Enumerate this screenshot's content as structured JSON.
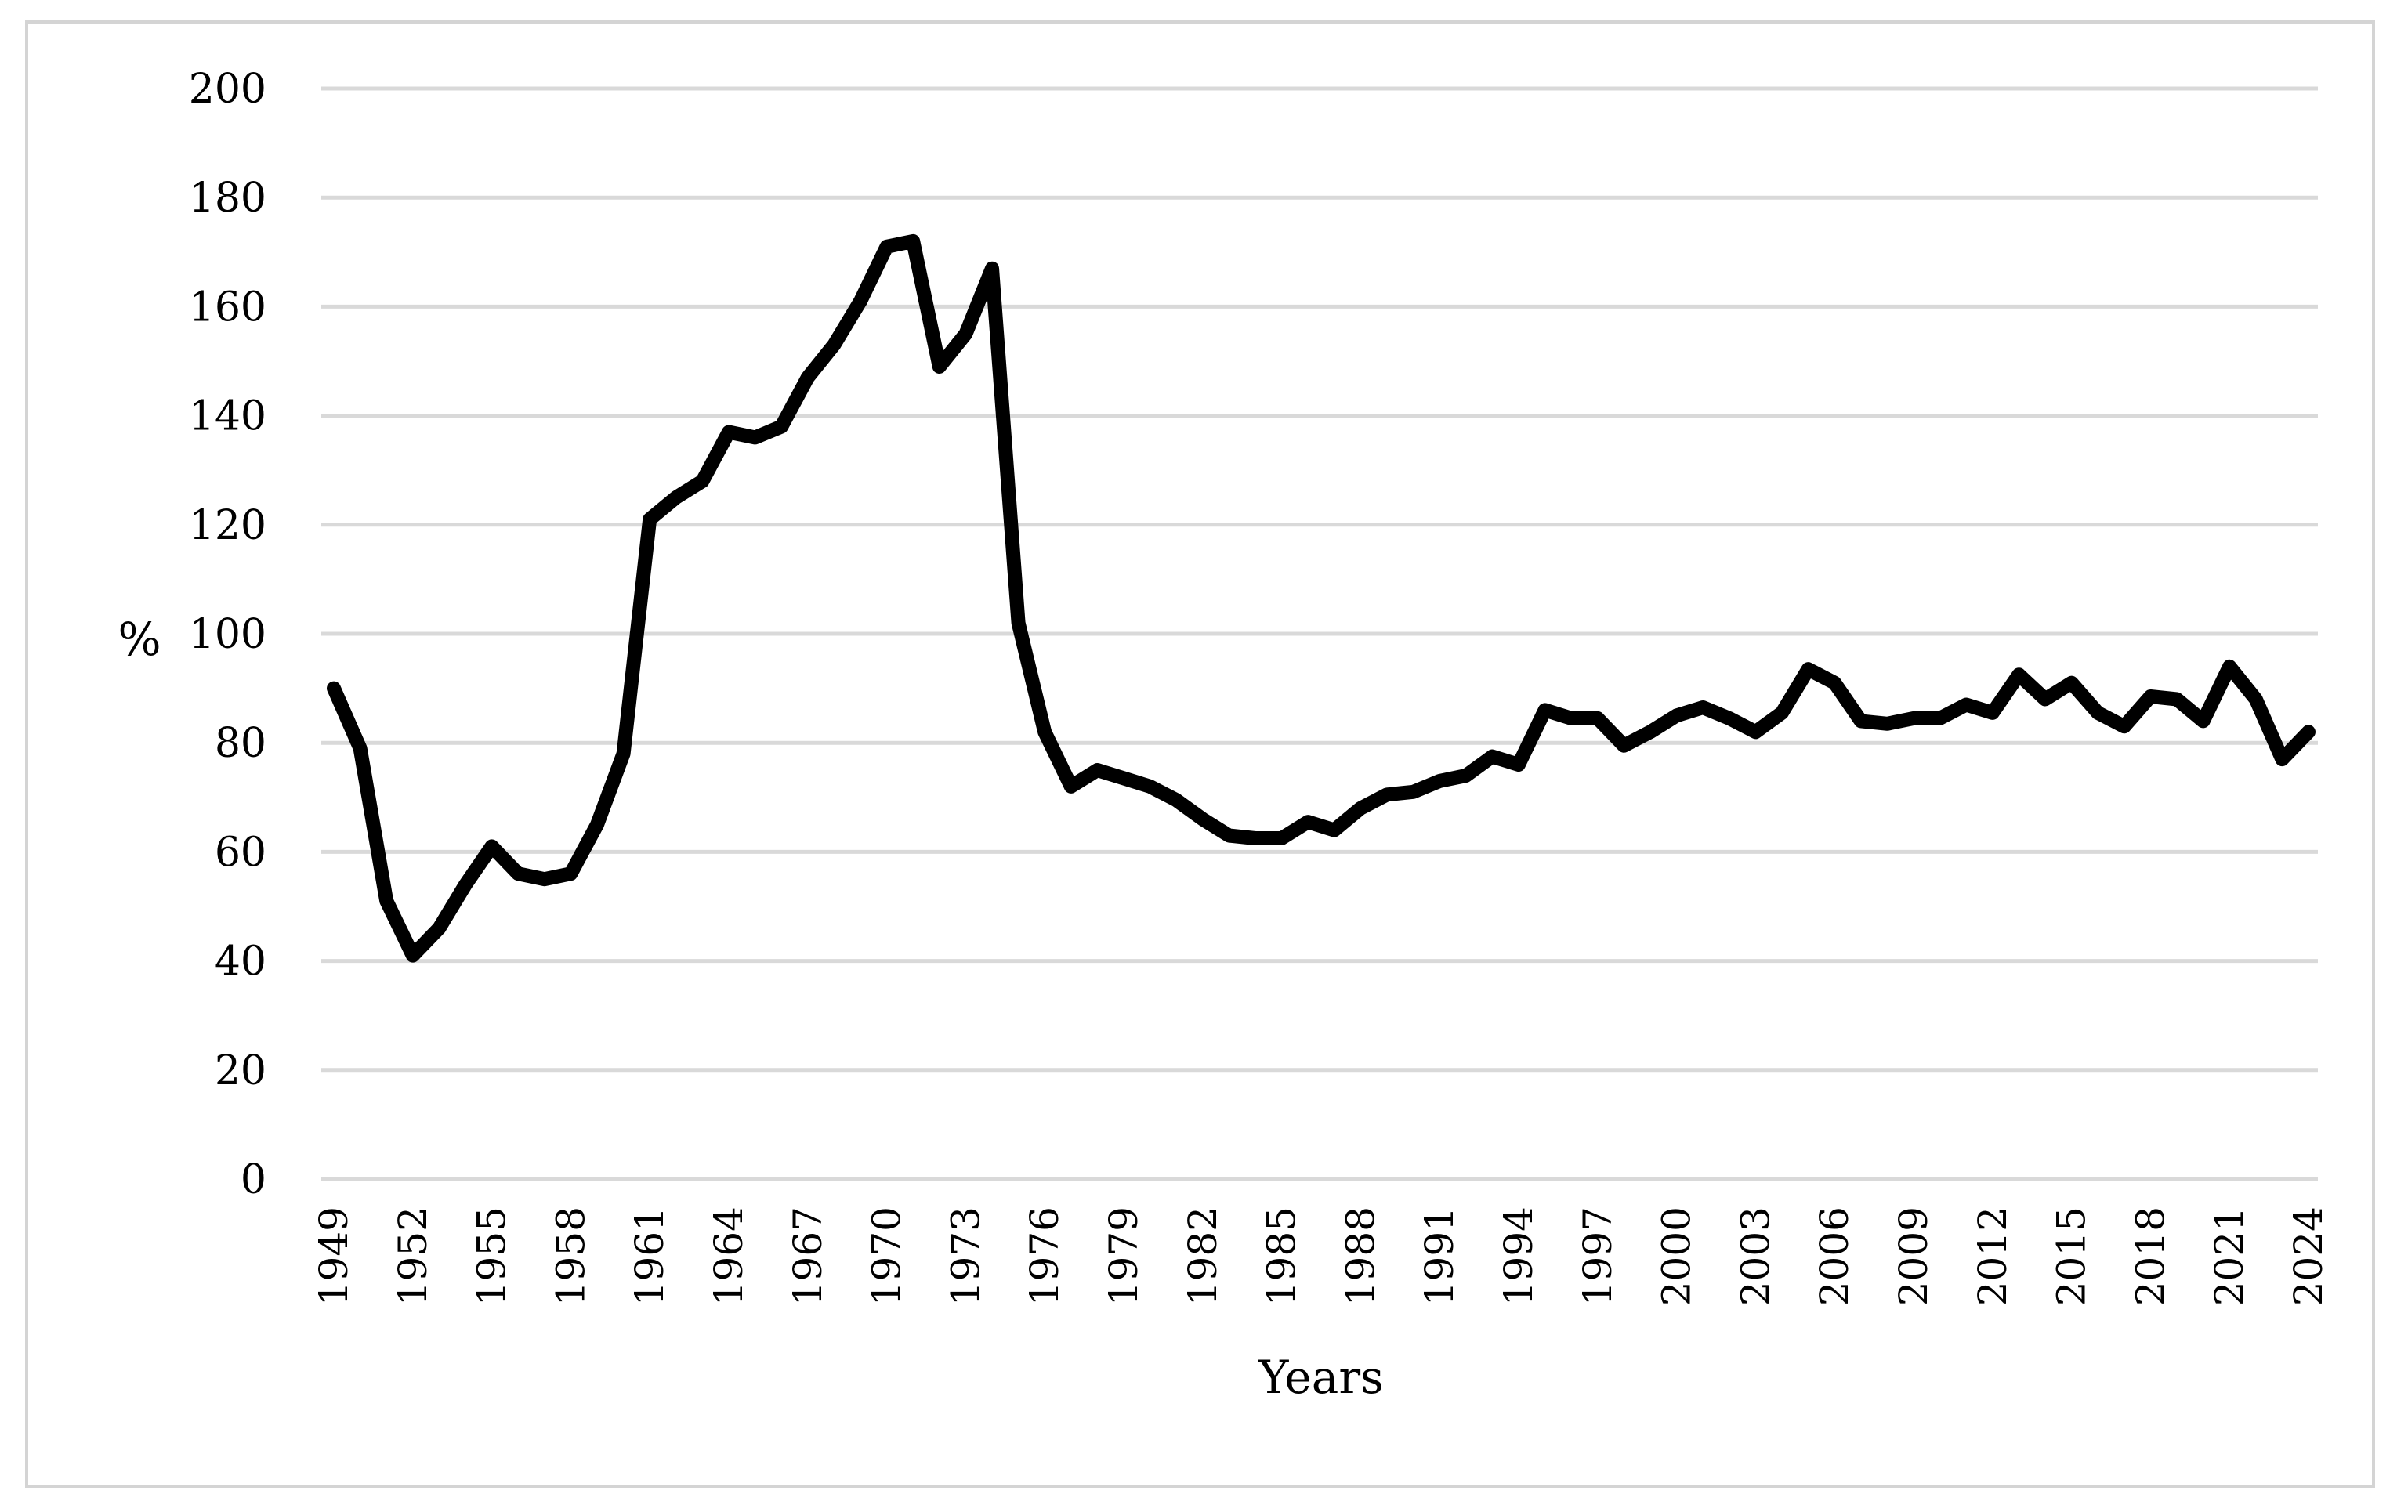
{
  "chart_data": {
    "type": "line",
    "title": "",
    "xlabel": "Years",
    "ylabel": "%",
    "ylim": [
      0,
      200
    ],
    "yticks": [
      0,
      20,
      40,
      60,
      80,
      100,
      120,
      140,
      160,
      180,
      200
    ],
    "xtick_labels": [
      "1949",
      "1952",
      "1955",
      "1958",
      "1961",
      "1964",
      "1967",
      "1970",
      "1973",
      "1976",
      "1979",
      "1982",
      "1985",
      "1988",
      "1991",
      "1994",
      "1997",
      "2000",
      "2003",
      "2006",
      "2009",
      "2012",
      "2015",
      "2018",
      "2021",
      "2024"
    ],
    "grid": "horizontal",
    "legend": "none",
    "line_color": "#000000",
    "grid_color": "#d9d9d9",
    "x": [
      1949,
      1950,
      1951,
      1952,
      1953,
      1954,
      1955,
      1956,
      1957,
      1958,
      1959,
      1960,
      1961,
      1962,
      1963,
      1964,
      1965,
      1966,
      1967,
      1968,
      1969,
      1970,
      1971,
      1972,
      1973,
      1974,
      1975,
      1976,
      1977,
      1978,
      1979,
      1980,
      1981,
      1982,
      1983,
      1984,
      1985,
      1986,
      1987,
      1988,
      1989,
      1990,
      1991,
      1992,
      1993,
      1994,
      1995,
      1996,
      1997,
      1998,
      1999,
      2000,
      2001,
      2002,
      2003,
      2004,
      2005,
      2006,
      2007,
      2008,
      2009,
      2010,
      2011,
      2012,
      2013,
      2014,
      2015,
      2016,
      2017,
      2018,
      2019,
      2020,
      2021,
      2022,
      2023,
      2024
    ],
    "series": [
      {
        "values": [
          90,
          79,
          51,
          41,
          46,
          54,
          61,
          56,
          55,
          56,
          65,
          78,
          121,
          125,
          128,
          137,
          136,
          138,
          147,
          153,
          161,
          171,
          172,
          149,
          155,
          167,
          102,
          82,
          72,
          75,
          73.5,
          72,
          69.5,
          66,
          63,
          62.5,
          62.5,
          65.5,
          64,
          68,
          70.5,
          71,
          73,
          74,
          77.5,
          76,
          86,
          84.5,
          84.5,
          79.5,
          82,
          85,
          86.5,
          84.5,
          82,
          85.5,
          93.5,
          91,
          84,
          83.5,
          84.5,
          84.5,
          87,
          85.5,
          92.5,
          88,
          91,
          85.5,
          83,
          88.5,
          88,
          84,
          94,
          88,
          77,
          82
        ]
      }
    ]
  }
}
